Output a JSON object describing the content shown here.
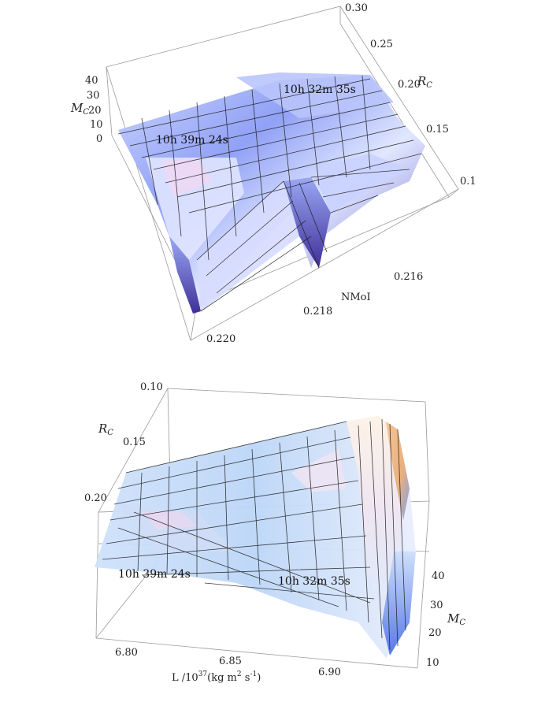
{
  "chart_data": [
    {
      "type": "surface3d",
      "axes": {
        "x": {
          "label": "NMoI",
          "ticks": [
            "0.220",
            "0.218",
            "0.216"
          ]
        },
        "y": {
          "label_main": "R",
          "label_sub": "C",
          "ticks": [
            "0.1",
            "0.15",
            "0.20",
            "0.25",
            "0.30"
          ]
        },
        "z": {
          "label_main": "M",
          "label_sub": "C",
          "ticks": [
            "0",
            "10",
            "20",
            "30",
            "40"
          ]
        }
      },
      "annotations": [
        "10h 39m 24s",
        "10h 32m 35s"
      ],
      "colors": {
        "surface_light": "#dfe6ff",
        "surface_mid": "#8f9ff2",
        "surface_dark": "#4a3aa8",
        "pink": "#f0d8f4"
      }
    },
    {
      "type": "surface3d",
      "axes": {
        "x": {
          "label": "L /10",
          "label_sup": "37",
          "label_rest": "(kg m",
          "label_sup2": "2",
          "label_rest2": " s",
          "label_sup3": "-1",
          "label_end": ")",
          "ticks": [
            "6.80",
            "6.85",
            "6.90"
          ]
        },
        "y": {
          "label_main": "R",
          "label_sub": "C",
          "ticks": [
            "0.10",
            "0.15",
            "0.20"
          ]
        },
        "z": {
          "label_main": "M",
          "label_sub": "C",
          "ticks": [
            "10",
            "20",
            "30",
            "40"
          ]
        }
      },
      "annotations": [
        "10h 39m 24s",
        "10h 32m 35s"
      ],
      "colors": {
        "surface_light": "#e6f0ff",
        "surface_mid": "#b7d3f5",
        "surface_dark": "#5c7fe8",
        "orange": "#f2c9a0"
      }
    }
  ]
}
